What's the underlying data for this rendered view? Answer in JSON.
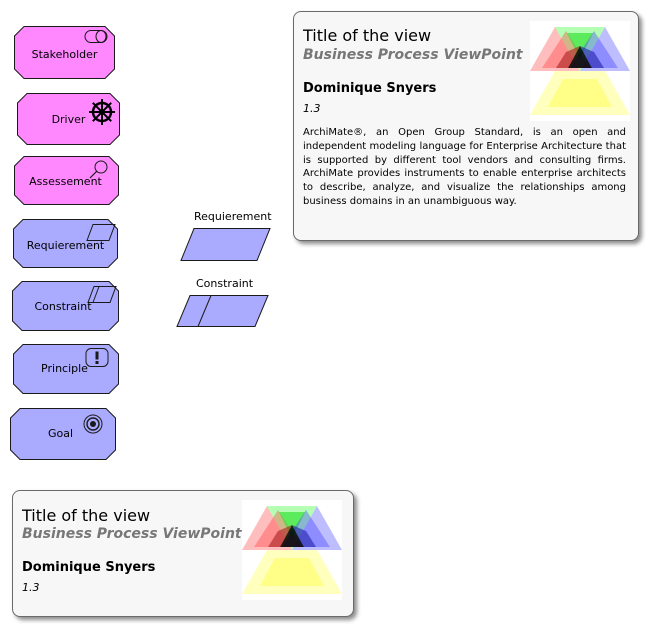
{
  "elements": {
    "stakeholder": {
      "label": "Stakeholder",
      "icon": "stakeholder-icon",
      "fill": "#ff88ff"
    },
    "driver": {
      "label": "Driver",
      "icon": "driver-wheel-icon",
      "fill": "#ff88ff"
    },
    "assessement": {
      "label": "Assessement",
      "icon": "magnifier-icon",
      "fill": "#ff88ff"
    },
    "requierement": {
      "label": "Requierement",
      "icon": "parallelogram-icon",
      "fill": "#aaaaff"
    },
    "constraint": {
      "label": "Constraint",
      "icon": "constraint-parallelogram-icon",
      "fill": "#aaaaff"
    },
    "principle": {
      "label": "Principle",
      "icon": "exclamation-icon",
      "fill": "#aaaaff"
    },
    "goal": {
      "label": "Goal",
      "icon": "target-icon",
      "fill": "#aaaaff"
    }
  },
  "shapes": {
    "requierement": {
      "label": "Requierement",
      "fill": "#aaaaff"
    },
    "constraint": {
      "label": "Constraint",
      "fill": "#aaaaff"
    }
  },
  "notes": {
    "top": {
      "title": "Title of the view",
      "subtitle": "Business Process ViewPoint",
      "author": "Dominique Snyers",
      "version": "1.3",
      "description": "ArchiMate®, an Open Group Standard, is an open and independent modeling language for Enterprise Architecture that is supported by different tool vendors and consulting firms. ArchiMate provides instruments to enable enterprise architects to describe, analyze, and visualize the relationships among business domains in an unambiguous way."
    },
    "bottom": {
      "title": "Title of the view",
      "subtitle": "Business Process ViewPoint",
      "author": "Dominique Snyers",
      "version": "1.3"
    }
  },
  "colors": {
    "motivation_pink": "#ff88ff",
    "motivation_blue": "#aaaaff",
    "note_bg": "#f7f7f7",
    "subtitle_gray": "#777777"
  }
}
